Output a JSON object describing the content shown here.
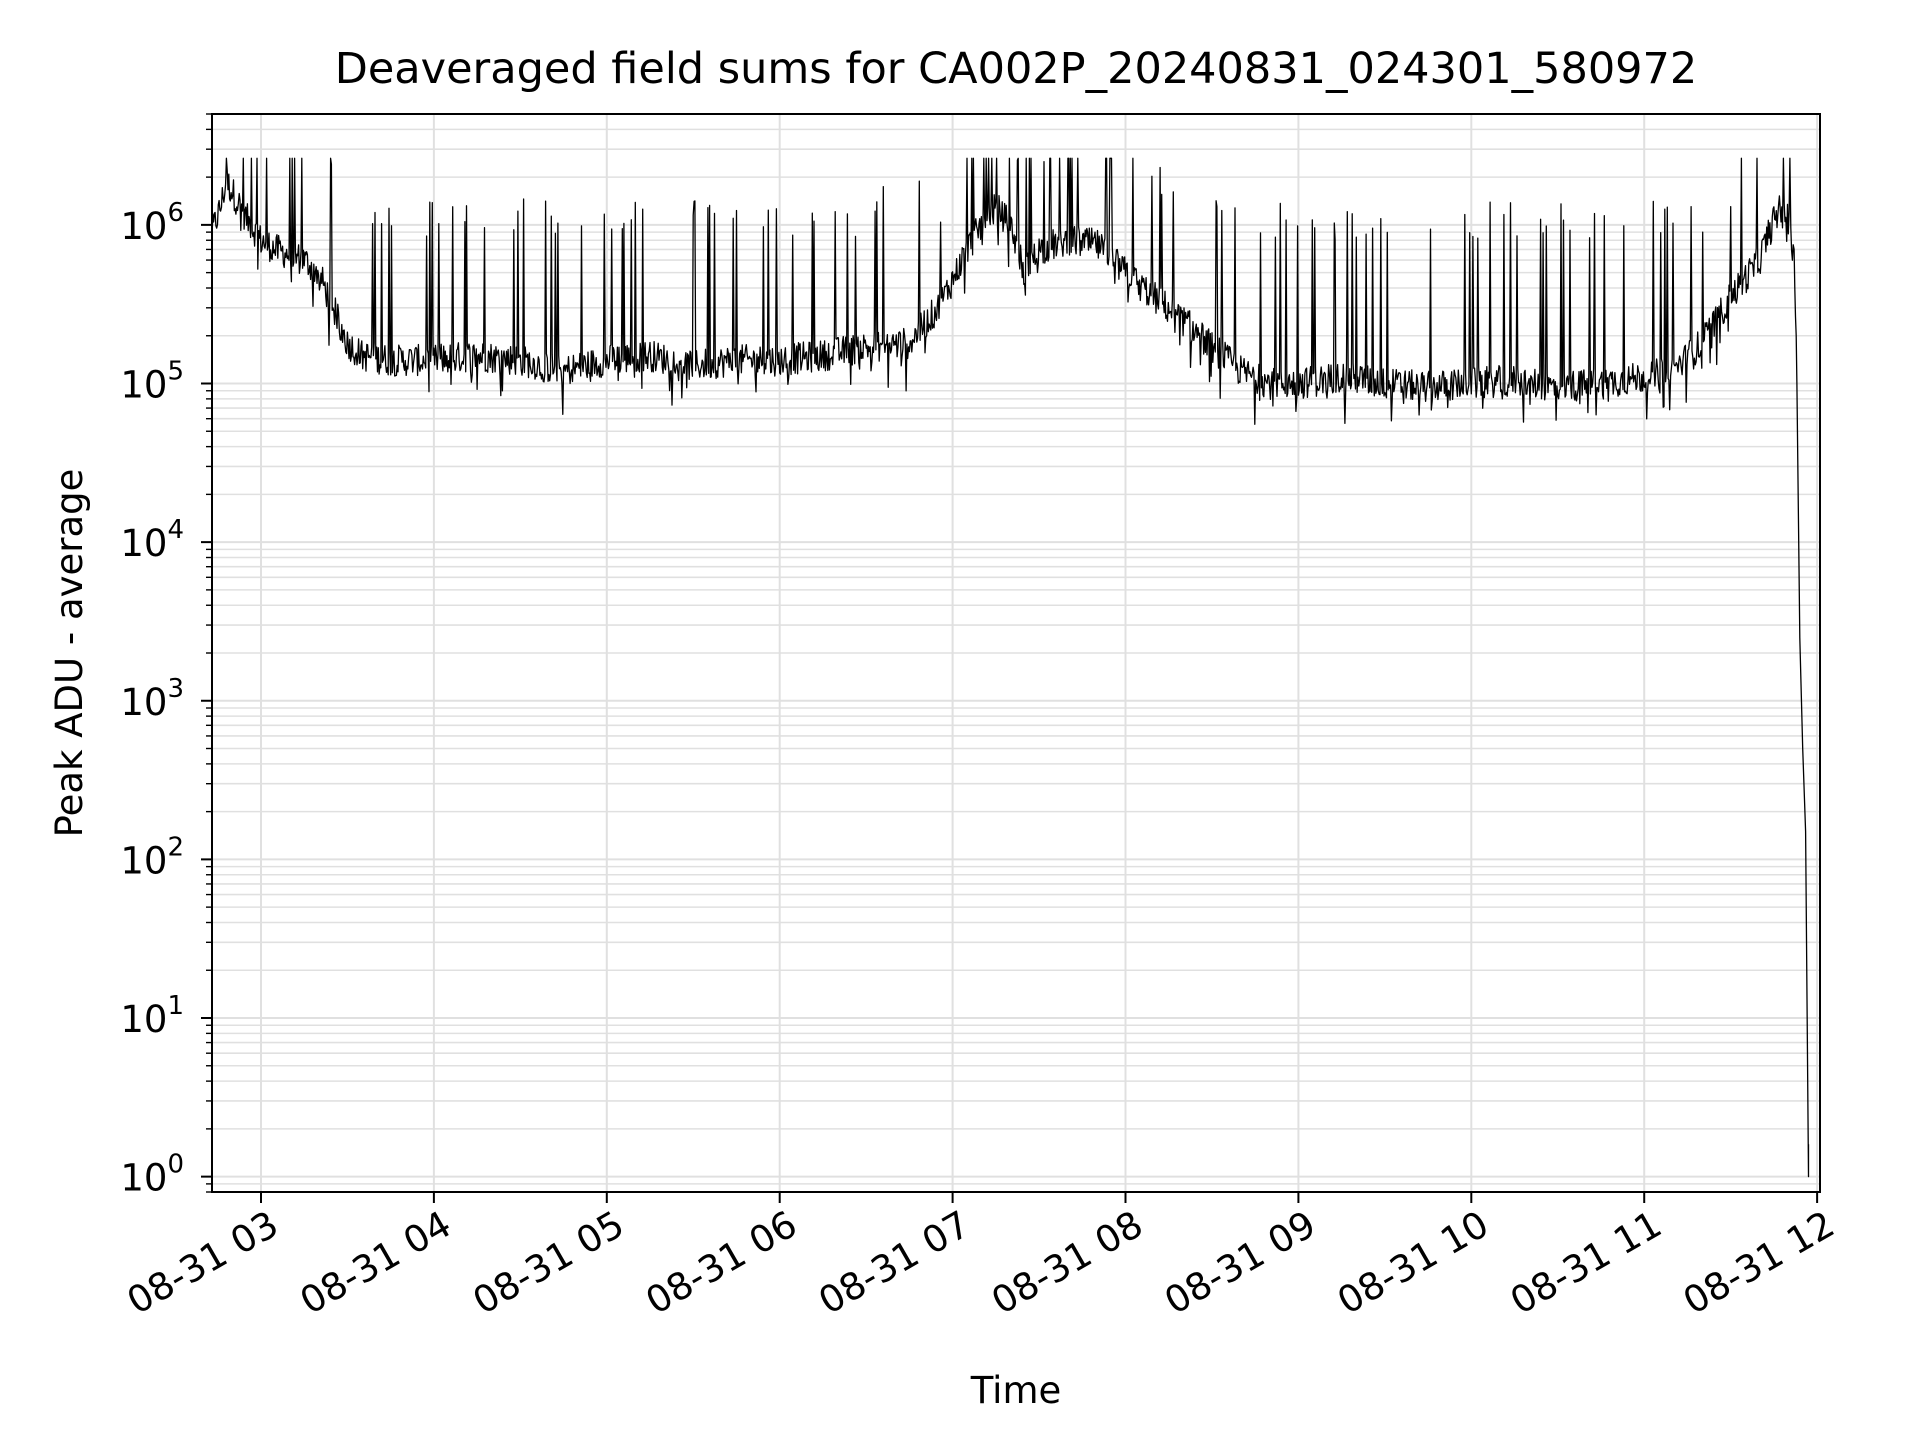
{
  "chart_data": {
    "type": "line",
    "title": "Deaveraged field sums for CA002P_20240831_024301_580972",
    "xlabel": "Time",
    "ylabel": "Peak ADU - average",
    "yscale": "log",
    "grid": true,
    "line_color": "#000000",
    "grid_color": "#e0e0e0",
    "x_tick_labels": [
      "08-31 03",
      "08-31 04",
      "08-31 05",
      "08-31 06",
      "08-31 07",
      "08-31 08",
      "08-31 09",
      "08-31 10",
      "08-31 11",
      "08-31 12"
    ],
    "xlim": [
      "2024-08-31 02:43",
      "2024-08-31 12:01"
    ],
    "y_tick_labels": [
      {
        "base": "10",
        "exp": "0"
      },
      {
        "base": "10",
        "exp": "1"
      },
      {
        "base": "10",
        "exp": "2"
      },
      {
        "base": "10",
        "exp": "3"
      },
      {
        "base": "10",
        "exp": "4"
      },
      {
        "base": "10",
        "exp": "5"
      },
      {
        "base": "10",
        "exp": "6"
      }
    ],
    "ylim": [
      0.8,
      5000000
    ],
    "series": [
      {
        "points": [
          [
            "2024-08-31 02:43",
            900000
          ],
          [
            "2024-08-31 02:46",
            1300000
          ],
          [
            "2024-08-31 02:48",
            1900000
          ],
          [
            "2024-08-31 02:51",
            1500000
          ],
          [
            "2024-08-31 02:55",
            1100000
          ],
          [
            "2024-08-31 03:00",
            800000
          ],
          [
            "2024-08-31 03:05",
            700000
          ],
          [
            "2024-08-31 03:10",
            650000
          ],
          [
            "2024-08-31 03:15",
            600000
          ],
          [
            "2024-08-31 03:20",
            500000
          ],
          [
            "2024-08-31 03:25",
            300000
          ],
          [
            "2024-08-31 03:30",
            180000
          ],
          [
            "2024-08-31 03:35",
            150000
          ],
          [
            "2024-08-31 03:45",
            140000
          ],
          [
            "2024-08-31 04:00",
            140000
          ],
          [
            "2024-08-31 04:15",
            150000
          ],
          [
            "2024-08-31 04:30",
            140000
          ],
          [
            "2024-08-31 04:45",
            120000
          ],
          [
            "2024-08-31 05:00",
            140000
          ],
          [
            "2024-08-31 05:15",
            150000
          ],
          [
            "2024-08-31 05:30",
            130000
          ],
          [
            "2024-08-31 05:45",
            140000
          ],
          [
            "2024-08-31 06:00",
            140000
          ],
          [
            "2024-08-31 06:15",
            150000
          ],
          [
            "2024-08-31 06:30",
            170000
          ],
          [
            "2024-08-31 06:45",
            180000
          ],
          [
            "2024-08-31 06:55",
            300000
          ],
          [
            "2024-08-31 07:00",
            450000
          ],
          [
            "2024-08-31 07:05",
            700000
          ],
          [
            "2024-08-31 07:10",
            1000000
          ],
          [
            "2024-08-31 07:15",
            1300000
          ],
          [
            "2024-08-31 07:20",
            1000000
          ],
          [
            "2024-08-31 07:25",
            500000
          ],
          [
            "2024-08-31 07:30",
            700000
          ],
          [
            "2024-08-31 07:40",
            800000
          ],
          [
            "2024-08-31 07:50",
            750000
          ],
          [
            "2024-08-31 08:00",
            500000
          ],
          [
            "2024-08-31 08:10",
            350000
          ],
          [
            "2024-08-31 08:20",
            250000
          ],
          [
            "2024-08-31 08:30",
            170000
          ],
          [
            "2024-08-31 08:40",
            120000
          ],
          [
            "2024-08-31 08:50",
            100000
          ],
          [
            "2024-08-31 09:00",
            100000
          ],
          [
            "2024-08-31 09:15",
            110000
          ],
          [
            "2024-08-31 09:30",
            100000
          ],
          [
            "2024-08-31 09:45",
            95000
          ],
          [
            "2024-08-31 10:00",
            100000
          ],
          [
            "2024-08-31 10:15",
            105000
          ],
          [
            "2024-08-31 10:30",
            95000
          ],
          [
            "2024-08-31 10:45",
            100000
          ],
          [
            "2024-08-31 11:00",
            110000
          ],
          [
            "2024-08-31 11:10",
            120000
          ],
          [
            "2024-08-31 11:20",
            180000
          ],
          [
            "2024-08-31 11:30",
            350000
          ],
          [
            "2024-08-31 11:40",
            600000
          ],
          [
            "2024-08-31 11:45",
            1100000
          ],
          [
            "2024-08-31 11:48",
            1300000
          ],
          [
            "2024-08-31 11:50",
            1100000
          ],
          [
            "2024-08-31 11:52",
            700000
          ],
          [
            "2024-08-31 11:53",
            100000
          ],
          [
            "2024-08-31 11:54",
            2500
          ],
          [
            "2024-08-31 11:55",
            500
          ],
          [
            "2024-08-31 11:56",
            150
          ],
          [
            "2024-08-31 11:57",
            1
          ],
          [
            "2024-08-31 11:57",
            1.6
          ]
        ]
      }
    ]
  }
}
